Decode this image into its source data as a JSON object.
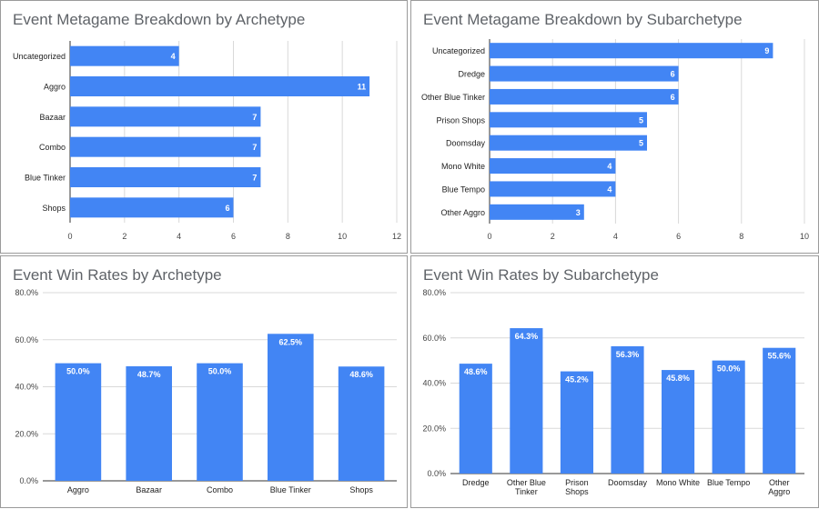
{
  "chart_data": [
    {
      "type": "bar",
      "orientation": "horizontal",
      "title": "Event Metagame Breakdown by Archetype",
      "categories": [
        "Uncategorized",
        "Aggro",
        "Bazaar",
        "Combo",
        "Blue Tinker",
        "Shops"
      ],
      "values": [
        4,
        11,
        7,
        7,
        7,
        6
      ],
      "xlim": [
        0,
        12
      ],
      "ticks": [
        "0",
        "2",
        "4",
        "6",
        "8",
        "10",
        "12"
      ],
      "grid": true,
      "color": "#4285f4"
    },
    {
      "type": "bar",
      "orientation": "horizontal",
      "title": "Event Metagame Breakdown by Subarchetype",
      "categories": [
        "Uncategorized",
        "Dredge",
        "Other Blue Tinker",
        "Prison Shops",
        "Doomsday",
        "Mono White",
        "Blue Tempo",
        "Other Aggro"
      ],
      "values": [
        9,
        6,
        6,
        5,
        5,
        4,
        4,
        3
      ],
      "xlim": [
        0,
        10
      ],
      "ticks": [
        "0",
        "2",
        "4",
        "6",
        "8",
        "10"
      ],
      "grid": true,
      "color": "#4285f4"
    },
    {
      "type": "bar",
      "orientation": "vertical",
      "title": "Event Win Rates by Archetype",
      "categories": [
        "Aggro",
        "Bazaar",
        "Combo",
        "Blue Tinker",
        "Shops"
      ],
      "values": [
        50.0,
        48.7,
        50.0,
        62.5,
        48.6
      ],
      "value_labels": [
        "50.0%",
        "48.7%",
        "50.0%",
        "62.5%",
        "48.6%"
      ],
      "ylim": [
        0,
        80
      ],
      "ticks": [
        "0.0%",
        "20.0%",
        "40.0%",
        "60.0%",
        "80.0%"
      ],
      "grid": true,
      "color": "#4285f4"
    },
    {
      "type": "bar",
      "orientation": "vertical",
      "title": "Event Win Rates by Subarchetype",
      "categories": [
        "Dredge",
        "Other Blue Tinker",
        "Prison Shops",
        "Doomsday",
        "Mono White",
        "Blue Tempo",
        "Other Aggro"
      ],
      "values": [
        48.6,
        64.3,
        45.2,
        56.3,
        45.8,
        50.0,
        55.6
      ],
      "value_labels": [
        "48.6%",
        "64.3%",
        "45.2%",
        "56.3%",
        "45.8%",
        "50.0%",
        "55.6%"
      ],
      "ylim": [
        0,
        80
      ],
      "ticks": [
        "0.0%",
        "20.0%",
        "40.0%",
        "60.0%",
        "80.0%"
      ],
      "grid": true,
      "color": "#4285f4"
    }
  ]
}
